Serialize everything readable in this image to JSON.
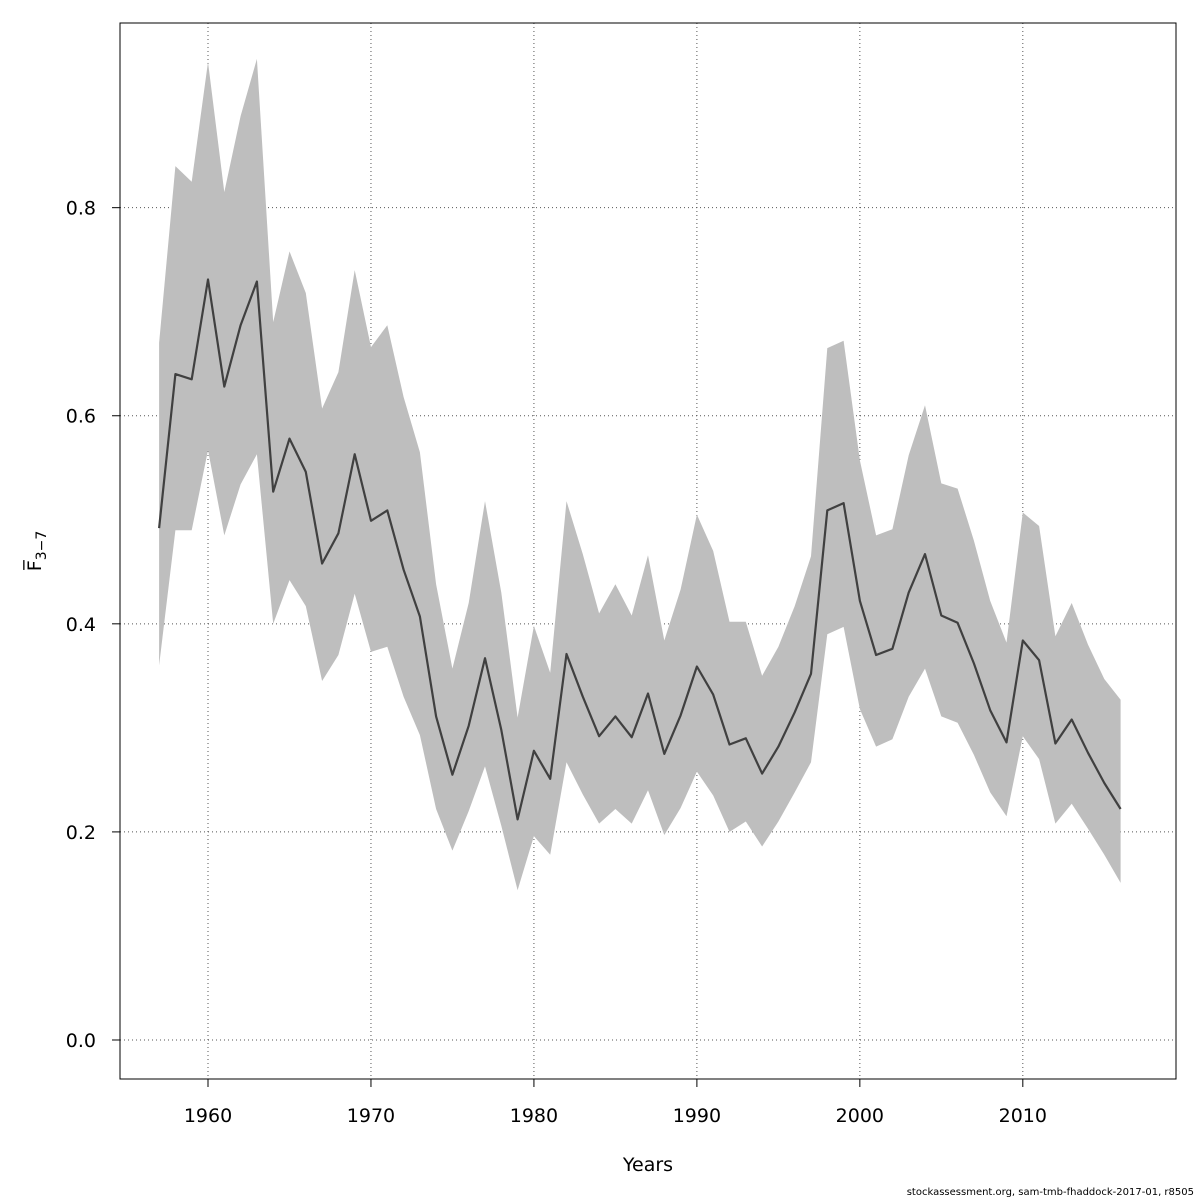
{
  "chart_data": {
    "type": "line",
    "xlabel": "Years",
    "ylabel": "F̅",
    "ylabel_subscript": "3−7",
    "xlim": [
      1954.6,
      2019.4
    ],
    "ylim": [
      -0.0375,
      0.9775
    ],
    "x_ticks": [
      1960,
      1970,
      1980,
      1990,
      2000,
      2010
    ],
    "y_ticks": [
      0.0,
      0.2,
      0.4,
      0.6,
      0.8
    ],
    "y_tick_labels": [
      "0.0",
      "0.2",
      "0.4",
      "0.6",
      "0.8"
    ],
    "grid": true,
    "colors": {
      "band": "#bebebe",
      "line": "#404040"
    },
    "series": [
      {
        "type": "line",
        "x": [
          1957,
          1958,
          1959,
          1960,
          1961,
          1962,
          1963,
          1964,
          1965,
          1966,
          1967,
          1968,
          1969,
          1970,
          1971,
          1972,
          1973,
          1974,
          1975,
          1976,
          1977,
          1978,
          1979,
          1980,
          1981,
          1982,
          1983,
          1984,
          1985,
          1986,
          1987,
          1988,
          1989,
          1990,
          1991,
          1992,
          1993,
          1994,
          1995,
          1996,
          1997,
          1998,
          1999,
          2000,
          2001,
          2002,
          2003,
          2004,
          2005,
          2006,
          2007,
          2008,
          2009,
          2010,
          2011,
          2012,
          2013,
          2014,
          2015,
          2016
        ],
        "y": [
          0.492,
          0.64,
          0.635,
          0.731,
          0.628,
          0.687,
          0.729,
          0.527,
          0.578,
          0.546,
          0.458,
          0.487,
          0.563,
          0.499,
          0.509,
          0.452,
          0.407,
          0.311,
          0.255,
          0.302,
          0.367,
          0.298,
          0.212,
          0.278,
          0.251,
          0.371,
          0.33,
          0.292,
          0.311,
          0.291,
          0.333,
          0.275,
          0.312,
          0.359,
          0.332,
          0.284,
          0.29,
          0.256,
          0.282,
          0.315,
          0.352,
          0.509,
          0.516,
          0.422,
          0.37,
          0.376,
          0.43,
          0.467,
          0.408,
          0.401,
          0.362,
          0.317,
          0.286,
          0.384,
          0.365,
          0.285,
          0.308,
          0.276,
          0.247,
          0.222
        ],
        "lower": [
          0.36,
          0.49,
          0.49,
          0.567,
          0.485,
          0.534,
          0.563,
          0.4,
          0.442,
          0.417,
          0.345,
          0.37,
          0.429,
          0.373,
          0.378,
          0.33,
          0.293,
          0.222,
          0.182,
          0.22,
          0.263,
          0.206,
          0.144,
          0.196,
          0.178,
          0.267,
          0.236,
          0.208,
          0.222,
          0.208,
          0.24,
          0.197,
          0.223,
          0.258,
          0.235,
          0.2,
          0.21,
          0.186,
          0.21,
          0.238,
          0.267,
          0.39,
          0.397,
          0.318,
          0.282,
          0.289,
          0.33,
          0.357,
          0.311,
          0.305,
          0.274,
          0.238,
          0.215,
          0.292,
          0.27,
          0.208,
          0.227,
          0.203,
          0.178,
          0.151
        ],
        "upper": [
          0.67,
          0.84,
          0.825,
          0.94,
          0.815,
          0.888,
          0.943,
          0.69,
          0.758,
          0.718,
          0.607,
          0.642,
          0.74,
          0.666,
          0.687,
          0.618,
          0.565,
          0.438,
          0.357,
          0.42,
          0.518,
          0.43,
          0.31,
          0.398,
          0.353,
          0.518,
          0.467,
          0.41,
          0.438,
          0.408,
          0.466,
          0.384,
          0.433,
          0.505,
          0.47,
          0.402,
          0.402,
          0.35,
          0.378,
          0.417,
          0.465,
          0.665,
          0.672,
          0.557,
          0.485,
          0.491,
          0.562,
          0.61,
          0.535,
          0.53,
          0.48,
          0.422,
          0.382,
          0.507,
          0.494,
          0.388,
          0.42,
          0.38,
          0.347,
          0.327
        ]
      }
    ]
  },
  "footer": {
    "source_text": "stockassessment.org, sam-tmb-fhaddock-2017-01, r8505"
  }
}
